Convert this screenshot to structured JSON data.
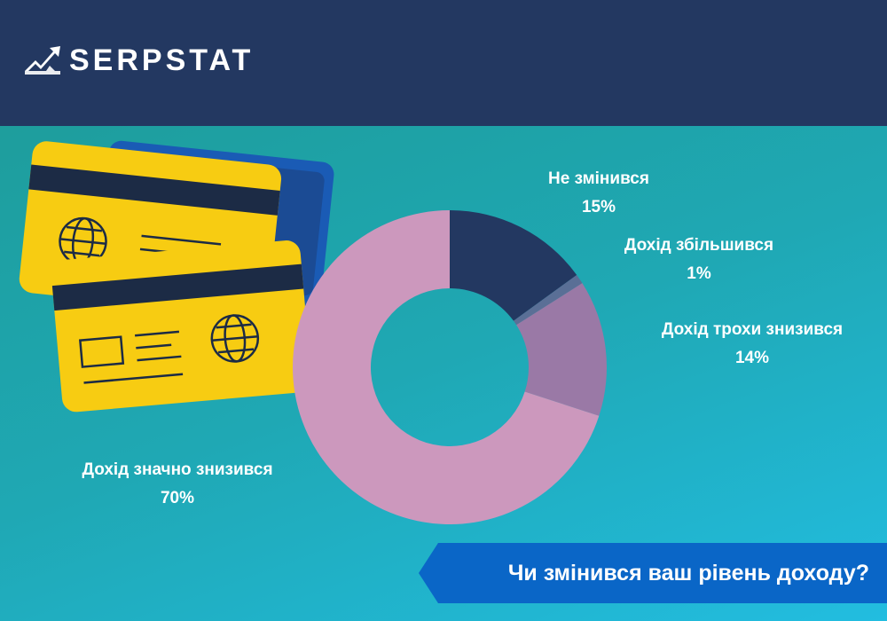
{
  "brand": {
    "name": "SERPSTAT"
  },
  "chart_data": {
    "type": "pie",
    "style": "donut",
    "title": "Чи змінився ваш рівень доходу?",
    "slices": [
      {
        "label": "Не змінився",
        "pct_label": "15%",
        "value": 15,
        "color": "#233861"
      },
      {
        "label": "Дохід збільшився",
        "pct_label": "1%",
        "value": 1,
        "color": "#5a6f96"
      },
      {
        "label": "Дохід трохи знизився",
        "pct_label": "14%",
        "value": 14,
        "color": "#9a79a6"
      },
      {
        "label": "Дохід значно знизився",
        "pct_label": "70%",
        "value": 70,
        "color": "#cc98bd"
      }
    ],
    "legend": "none"
  },
  "colors": {
    "header": "#233861",
    "card_yellow": "#f7cc12",
    "card_blue": "#1a5bb5",
    "card_stripe": "#1c2b45",
    "banner": "#0a66c7"
  },
  "icons": [
    "serpstat-logo-icon",
    "globe-icon",
    "credit-card-illustration"
  ]
}
